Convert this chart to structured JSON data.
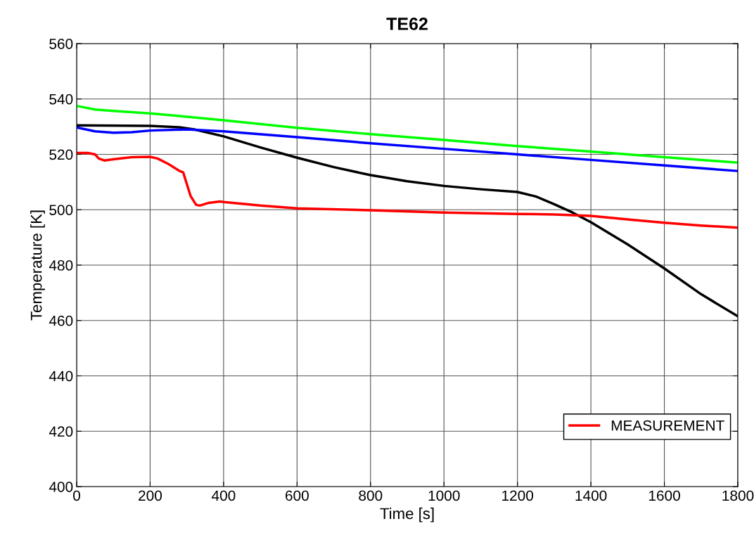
{
  "chart_data": {
    "type": "line",
    "title": "TE62",
    "xlabel": "Time [s]",
    "ylabel": "Temperature [K]",
    "xlim": [
      0,
      1800
    ],
    "xticks": [
      0,
      200,
      400,
      600,
      800,
      1000,
      1200,
      1400,
      1600,
      1800
    ],
    "ylim": [
      400,
      560
    ],
    "yticks": [
      400,
      420,
      440,
      460,
      480,
      500,
      520,
      540,
      560
    ],
    "grid": true,
    "legend": "bottom right",
    "marker": "none",
    "line_style": "solid",
    "series": [
      {
        "color": "#00ff00",
        "x": [
          0,
          50,
          100,
          200,
          300,
          400,
          600,
          800,
          1000,
          1200,
          1400,
          1600,
          1800
        ],
        "values": [
          537.5,
          536.2,
          535.7,
          534.8,
          533.6,
          532.3,
          529.6,
          527.3,
          525.2,
          523.0,
          521.0,
          519.0,
          517.0
        ]
      },
      {
        "color": "#000000",
        "x": [
          0,
          200,
          280,
          320,
          400,
          500,
          600,
          700,
          800,
          900,
          1000,
          1100,
          1200,
          1250,
          1300,
          1350,
          1400,
          1500,
          1600,
          1700,
          1800
        ],
        "values": [
          530.5,
          530.3,
          529.8,
          529.0,
          526.5,
          522.5,
          518.8,
          515.4,
          512.5,
          510.3,
          508.6,
          507.4,
          506.4,
          504.8,
          502.0,
          499.0,
          495.5,
          487.5,
          478.8,
          469.5,
          461.5
        ]
      },
      {
        "color": "#0000ff",
        "x": [
          0,
          50,
          100,
          150,
          200,
          300,
          400,
          600,
          800,
          1000,
          1200,
          1400,
          1600,
          1800
        ],
        "values": [
          529.7,
          528.3,
          527.8,
          528.0,
          528.6,
          529.0,
          528.3,
          526.2,
          524.0,
          522.0,
          520.0,
          518.0,
          516.0,
          514.0
        ]
      },
      {
        "name": "MEASUREMENT",
        "color": "#ff0000",
        "x": [
          0,
          30,
          50,
          60,
          75,
          100,
          150,
          200,
          220,
          250,
          280,
          290,
          310,
          325,
          335,
          360,
          390,
          400,
          500,
          600,
          800,
          1000,
          1200,
          1300,
          1400,
          1500,
          1600,
          1700,
          1800
        ],
        "values": [
          520.5,
          520.5,
          520.0,
          518.5,
          517.8,
          518.2,
          519.0,
          519.1,
          518.5,
          516.5,
          514.0,
          513.5,
          505.0,
          501.8,
          501.5,
          502.5,
          503.0,
          502.8,
          501.5,
          500.5,
          499.8,
          499.0,
          498.5,
          498.3,
          497.8,
          496.5,
          495.3,
          494.3,
          493.5
        ]
      }
    ]
  }
}
